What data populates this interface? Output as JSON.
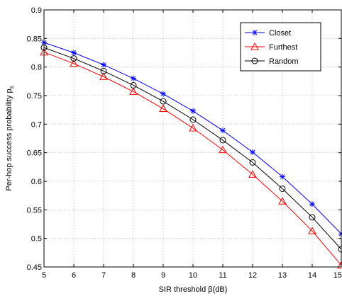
{
  "chart_data": {
    "type": "line",
    "xlabel": "SIR threshold β(dB)",
    "ylabel_main": "Per-hop success probability p",
    "ylabel_sub": "s",
    "x": [
      5,
      6,
      7,
      8,
      9,
      10,
      11,
      12,
      13,
      14,
      15
    ],
    "xlim": [
      5,
      15
    ],
    "ylim": [
      0.45,
      0.9
    ],
    "xticks": [
      "5",
      "6",
      "7",
      "8",
      "9",
      "10",
      "11",
      "12",
      "13",
      "14",
      "15"
    ],
    "yticks": [
      "0.45",
      "0.5",
      "0.55",
      "0.6",
      "0.65",
      "0.7",
      "0.75",
      "0.8",
      "0.85",
      "0.9"
    ],
    "grid": true,
    "legend_position": "top-right",
    "series": [
      {
        "name": "Closet",
        "color": "#0000ff",
        "marker": "star",
        "values": [
          0.843,
          0.825,
          0.804,
          0.78,
          0.753,
          0.723,
          0.689,
          0.651,
          0.608,
          0.56,
          0.508
        ]
      },
      {
        "name": "Furthest",
        "color": "#ff0000",
        "marker": "triangle",
        "values": [
          0.826,
          0.806,
          0.783,
          0.757,
          0.727,
          0.693,
          0.655,
          0.612,
          0.565,
          0.513,
          0.453
        ]
      },
      {
        "name": "Random",
        "color": "#000000",
        "marker": "circle",
        "values": [
          0.834,
          0.815,
          0.793,
          0.768,
          0.74,
          0.708,
          0.672,
          0.633,
          0.587,
          0.537,
          0.481
        ]
      }
    ]
  }
}
